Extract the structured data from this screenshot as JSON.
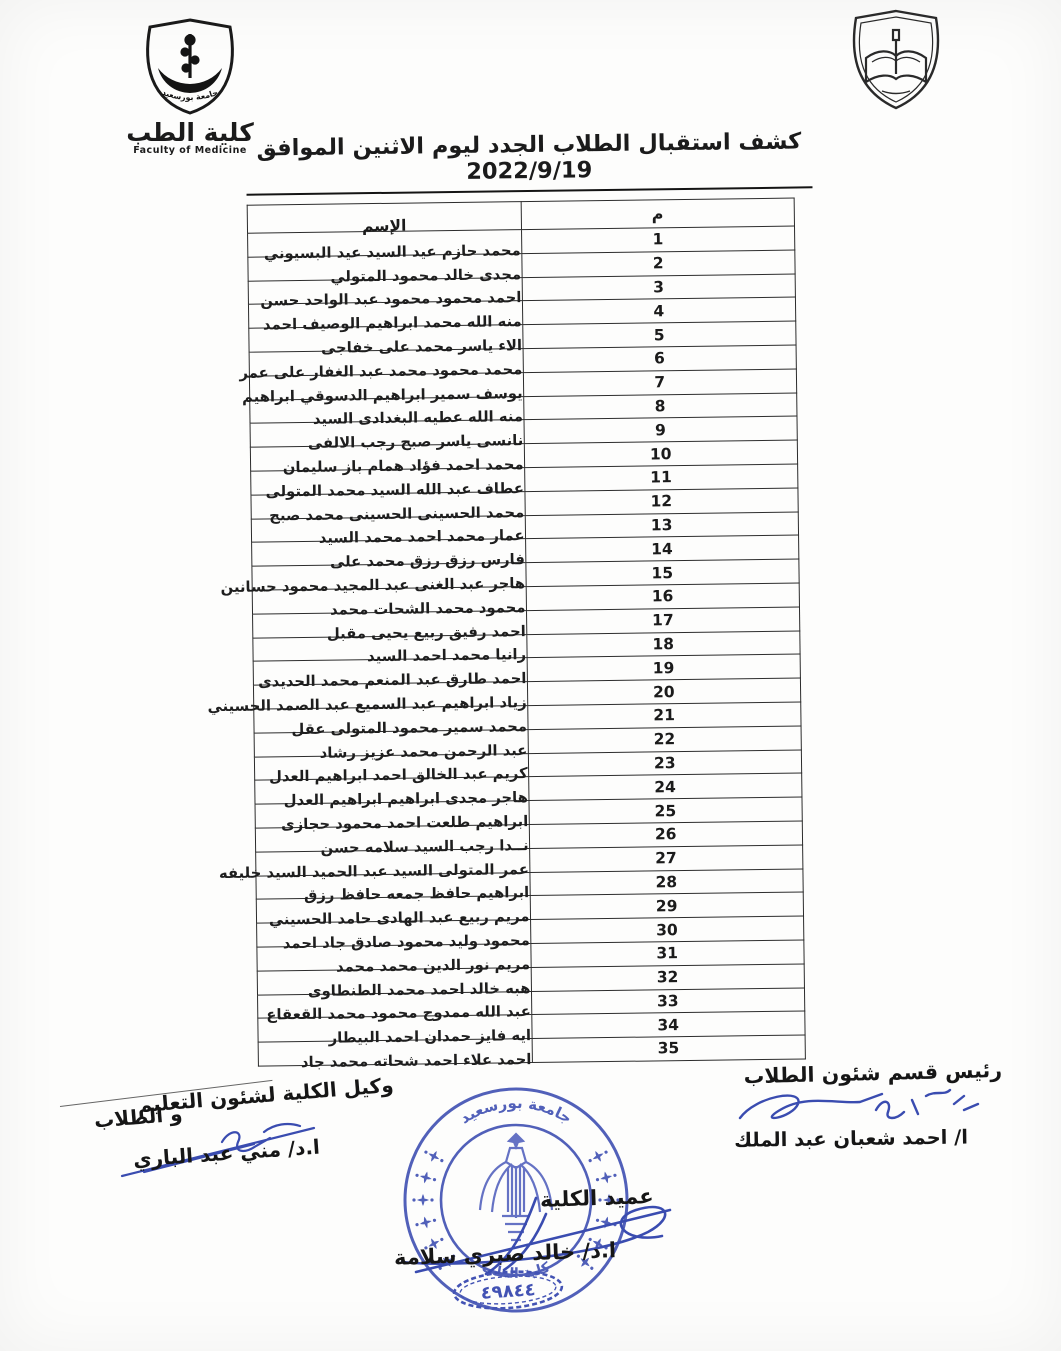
{
  "page_title": "كشف استقبال الطلاب الجدد ليوم الاثنين الموافق 2022/9/19",
  "logos": {
    "left": {
      "university_banner": "جامعة بورسعيد",
      "faculty_ar": "كلية الطب",
      "faculty_en": "Faculty of Medicine"
    }
  },
  "table": {
    "headers": {
      "no": "م",
      "name": "الإسم"
    },
    "rows": [
      {
        "no": "1",
        "name": "محمد حازم عيد السيد عيد البسيوني"
      },
      {
        "no": "2",
        "name": "مجدى خالد محمود المتولي"
      },
      {
        "no": "3",
        "name": "احمد محمود محمود عبد الواحد حسن"
      },
      {
        "no": "4",
        "name": "منه الله محمد ابراهيم الوصيف احمد"
      },
      {
        "no": "5",
        "name": "الاء ياسر محمد على خفاجى"
      },
      {
        "no": "6",
        "name": "محمد محمود محمد عبد الغفار على عمر"
      },
      {
        "no": "7",
        "name": "يوسف سمير ابراهيم الدسوقي ابراهيم"
      },
      {
        "no": "8",
        "name": "منه الله عطيه البغدادى السيد"
      },
      {
        "no": "9",
        "name": "نانسى ياسر صبح رجب الالفى"
      },
      {
        "no": "10",
        "name": "محمد احمد فؤاد همام باز سليمان"
      },
      {
        "no": "11",
        "name": "عطاف عبد الله السيد محمد المتولى"
      },
      {
        "no": "12",
        "name": "محمد الحسينى الحسينى محمد صبح"
      },
      {
        "no": "13",
        "name": "عمار محمد احمد محمد السيد"
      },
      {
        "no": "14",
        "name": "فارس رزق رزق محمد على"
      },
      {
        "no": "15",
        "name": "هاجر عبد الغنى عبد المجيد محمود حسانين"
      },
      {
        "no": "16",
        "name": "محمود محمد الشحات محمد"
      },
      {
        "no": "17",
        "name": "احمد رفيق ربيع يحيى مقبل"
      },
      {
        "no": "18",
        "name": "رانيا محمد احمد السيد"
      },
      {
        "no": "19",
        "name": "احمد طارق عبد المنعم محمد الحديدى"
      },
      {
        "no": "20",
        "name": "زياد ابراهيم عبد السميع عبد الصمد الحسيني"
      },
      {
        "no": "21",
        "name": "محمد سمير محمود المتولى عقل"
      },
      {
        "no": "22",
        "name": "عبد الرحمن محمد عزيز رشاد"
      },
      {
        "no": "23",
        "name": "كريم عبد الخالق احمد ابراهيم العدل"
      },
      {
        "no": "24",
        "name": "هاجر مجدى ابراهيم ابراهيم العدل"
      },
      {
        "no": "25",
        "name": "ابراهيم طلعت احمد محمود حجازى"
      },
      {
        "no": "26",
        "name": "نــدا رجب السيد سلامه حسن"
      },
      {
        "no": "27",
        "name": "عمر المتولى السيد عبد الحميد السيد خليفه"
      },
      {
        "no": "28",
        "name": "ابراهيم حافظ جمعه حافظ رزق"
      },
      {
        "no": "29",
        "name": "مريم ربيع عبد الهادى حامد الحسيني"
      },
      {
        "no": "30",
        "name": "محمود وليد محمود صادق جاد احمد"
      },
      {
        "no": "31",
        "name": "مريم نور الدين محمد محمد"
      },
      {
        "no": "32",
        "name": "هبه خالد احمد محمد الطنطاوى"
      },
      {
        "no": "33",
        "name": "عبد الله ممدوح محمود محمد القعقاع"
      },
      {
        "no": "34",
        "name": "ايه فايز حمدان احمد البيطار"
      },
      {
        "no": "35",
        "name": "احمد علاء احمد شحاته محمد جاد"
      }
    ]
  },
  "signatures": {
    "right": {
      "title": "رئيس قسم شئون الطلاب",
      "name": "ا/ احمد شعبان عبد الملك"
    },
    "left": {
      "title_line1": "وكيل الكلية لشئون التعليم",
      "title_line2": "و الطلاب",
      "name": "ا.د/ مني عبد الباري"
    },
    "dean": {
      "title": "عميد الكلية",
      "name": "ا.د/ خالد صبري سلامة"
    }
  },
  "stamp": {
    "university": "جامعة بورسعيد",
    "faculty": "كلية الطب",
    "number": "٤٩٨٤٤"
  },
  "colors": {
    "ink_blue": "#4353b4",
    "ink_black": "#1b1b1b",
    "paper": "#fdfdfc"
  }
}
